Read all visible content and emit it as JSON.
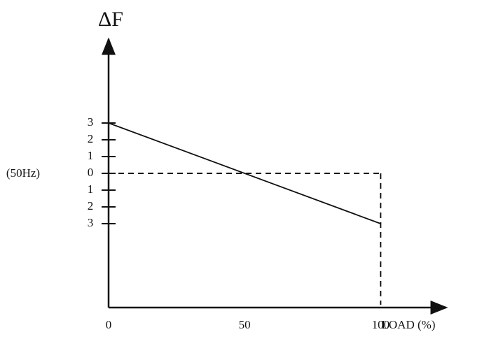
{
  "chart_data": {
    "type": "line",
    "y_label": "ΔF",
    "x_label": "LOAD (%)",
    "annotation": "(50Hz)",
    "x": [
      0,
      100
    ],
    "series": [
      {
        "color": "#111111",
        "values": [
          3,
          -3
        ]
      }
    ],
    "xlim": [
      0,
      120
    ],
    "xticks": [
      0,
      50,
      100
    ],
    "ylim": [
      -8,
      7.5
    ],
    "yticks": [
      3,
      2,
      1,
      0,
      {
        "value": -1,
        "label": "1"
      },
      {
        "value": -2,
        "label": "2"
      },
      {
        "value": -3,
        "label": "3"
      }
    ],
    "reference_lines": {
      "y": 0,
      "x": 100
    }
  }
}
